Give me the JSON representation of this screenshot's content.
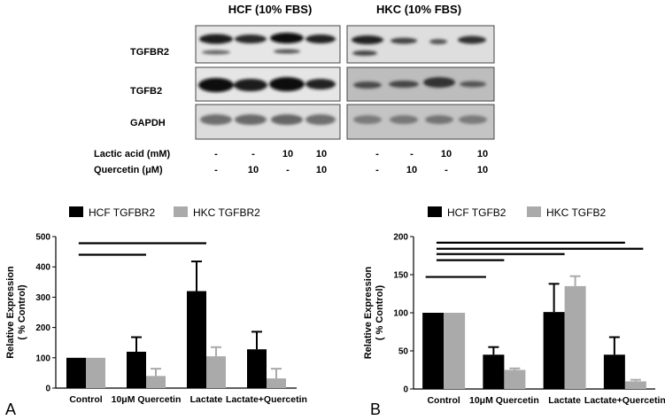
{
  "blot": {
    "groups": [
      "HCF (10% FBS)",
      "HKC (10% FBS)"
    ],
    "rows": [
      "TGFBR2",
      "TGFB2",
      "GAPDH"
    ],
    "conditions": [
      {
        "label": "Lactic acid (mM)",
        "values": [
          "-",
          "-",
          "10",
          "10",
          "-",
          "-",
          "10",
          "10"
        ]
      },
      {
        "label": "Quercetin (μM)",
        "values": [
          "-",
          "10",
          "-",
          "10",
          "-",
          "10",
          "-",
          "10"
        ]
      }
    ]
  },
  "colors": {
    "hcf": "#000000",
    "hkc": "#aaaaaa",
    "blot_bg_left": "#e7e7e7",
    "blot_bg_right": "#c9c9c9"
  },
  "chart_data": [
    {
      "type": "bar",
      "panel_label": "A",
      "categories": [
        "Control",
        "10μM Quercetin",
        "Lactate",
        "Lactate+Quercetin"
      ],
      "series": [
        {
          "name": "HCF TGFBR2",
          "values": [
            100,
            120,
            320,
            128
          ],
          "errors": [
            0,
            48,
            98,
            58
          ]
        },
        {
          "name": "HKC TGFBR2",
          "values": [
            100,
            40,
            105,
            32
          ],
          "errors": [
            0,
            24,
            30,
            32
          ]
        }
      ],
      "ylabel": "Relative Expression\n( % Control)",
      "ylim": [
        0,
        500
      ],
      "yticks": [
        0,
        100,
        200,
        300,
        400,
        500
      ],
      "significance_lines": [
        {
          "from": 0,
          "to": 2,
          "y": 478
        },
        {
          "from": 0,
          "to": 1,
          "y": 440
        }
      ],
      "legend": "top"
    },
    {
      "type": "bar",
      "panel_label": "B",
      "categories": [
        "Control",
        "10μM Quercetin",
        "Lactate",
        "Lactate+Quercetin"
      ],
      "series": [
        {
          "name": "HCF TGFB2",
          "values": [
            100,
            45,
            101,
            45
          ],
          "errors": [
            0,
            10,
            37,
            23
          ]
        },
        {
          "name": "HKC TGFB2",
          "values": [
            100,
            25,
            135,
            10
          ],
          "errors": [
            0,
            2,
            13,
            2
          ]
        }
      ],
      "ylabel": "Relative Expression\n( % Control)",
      "ylim": [
        0,
        200
      ],
      "yticks": [
        0,
        50,
        100,
        150,
        200
      ],
      "significance_lines": [
        {
          "from": 0,
          "to": 3,
          "y": 192
        },
        {
          "from": 0,
          "to": 3.3,
          "y": 184
        },
        {
          "from": 0,
          "to": 2,
          "y": 177
        },
        {
          "from": 0,
          "to": 1,
          "y": 169
        },
        {
          "from": -0.3,
          "to": 0.7,
          "y": 147
        }
      ],
      "legend": "top"
    }
  ]
}
